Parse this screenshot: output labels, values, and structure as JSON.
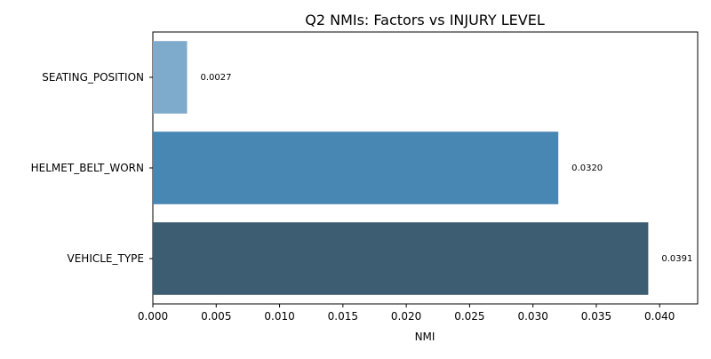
{
  "chart_data": {
    "type": "bar",
    "orientation": "horizontal",
    "title": "Q2 NMIs: Factors vs INJURY LEVEL",
    "xlabel": "NMI",
    "ylabel": "",
    "xlim": [
      0,
      0.043
    ],
    "xticks": [
      "0.000",
      "0.005",
      "0.010",
      "0.015",
      "0.020",
      "0.025",
      "0.030",
      "0.035",
      "0.040"
    ],
    "grid": false,
    "categories": [
      "SEATING_POSITION",
      "HELMET_BELT_WORN",
      "VEHICLE_TYPE"
    ],
    "values": [
      0.0027,
      0.032,
      0.0391
    ],
    "data_labels": [
      "0.0027",
      "0.0320",
      "0.0391"
    ],
    "colors": [
      "#7eaacb",
      "#4886b4",
      "#3d5d73"
    ]
  }
}
